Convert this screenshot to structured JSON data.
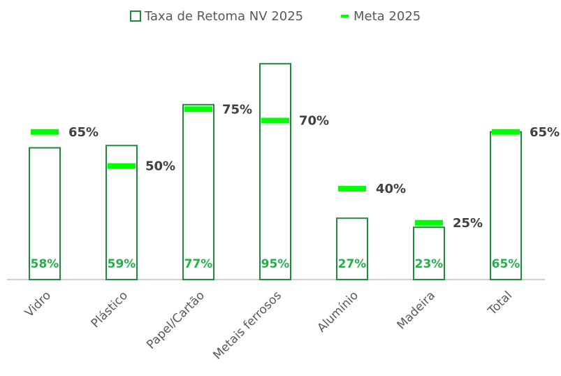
{
  "chart_data": {
    "type": "bar",
    "categories": [
      "Vidro",
      "Plástico",
      "Papel/Cartão",
      "Metais ferrosos",
      "Alumínio",
      "Madeira",
      "Total"
    ],
    "series": [
      {
        "name": "Taxa de Retoma NV 2025",
        "color": "#1e8a3e",
        "values": [
          58,
          59,
          77,
          95,
          27,
          23,
          65
        ],
        "value_labels": [
          "58%",
          "59%",
          "77%",
          "95%",
          "27%",
          "23%",
          "65%"
        ]
      },
      {
        "name": "Meta 2025",
        "color": "#00ff00",
        "values": [
          65,
          50,
          75,
          70,
          40,
          25,
          65
        ],
        "value_labels": [
          "65%",
          "50%",
          "75%",
          "70%",
          "40%",
          "25%",
          "65%"
        ]
      }
    ],
    "ylim": [
      0,
      100
    ],
    "legend": "top"
  }
}
